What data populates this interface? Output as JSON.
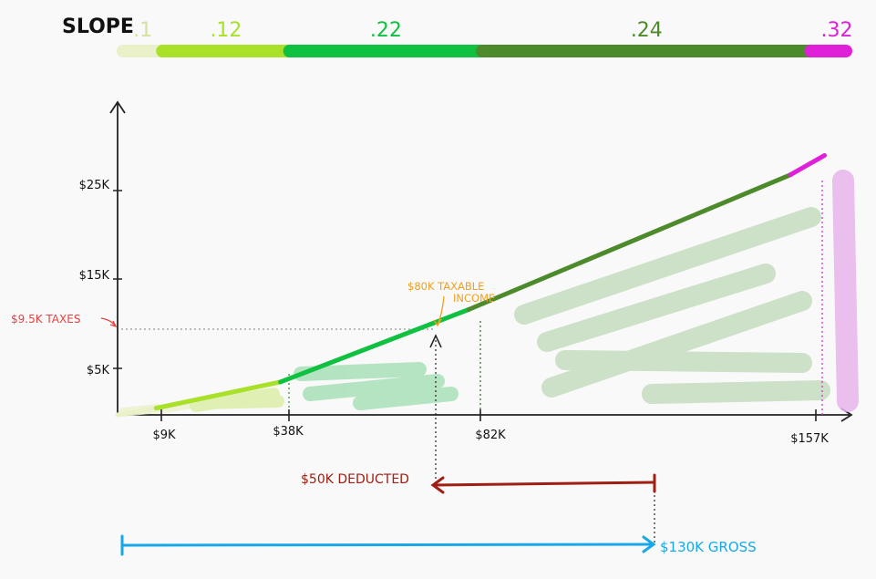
{
  "header": {
    "label": "SLOPE",
    "segments": [
      {
        "rate": ".1",
        "color": "#eaf0c8"
      },
      {
        "rate": ".12",
        "color": "#a8e02a"
      },
      {
        "rate": ".22",
        "color": "#10c040"
      },
      {
        "rate": ".24",
        "color": "#4d8a2c"
      },
      {
        "rate": ".32",
        "color": "#e020d8"
      }
    ]
  },
  "chart_data": {
    "type": "line",
    "x_ticks": [
      "$9K",
      "$38K",
      "$82K",
      "$157K"
    ],
    "y_ticks": [
      "$5K",
      "$15K",
      "$25K"
    ],
    "x": [
      0,
      9,
      38,
      82,
      157,
      165
    ],
    "y": [
      0,
      0.9,
      4.4,
      14.1,
      32.1,
      34.7
    ],
    "segment_slopes": [
      0.1,
      0.12,
      0.22,
      0.24,
      0.32
    ],
    "segment_colors": [
      "#eaf0c8",
      "#a8e02a",
      "#10c040",
      "#4d8a2c",
      "#e020d8"
    ]
  },
  "annotations": {
    "taxes": "$9.5K TAXES",
    "taxable_line1": "$80K TAXABLE",
    "taxable_line2": "INCOME",
    "deducted": "$50K DEDUCTED",
    "gross": "$130K GROSS"
  },
  "colors": {
    "taxes": "#e84040",
    "taxable": "#f0a020",
    "deducted": "#a01e14",
    "gross": "#18a8e8"
  }
}
